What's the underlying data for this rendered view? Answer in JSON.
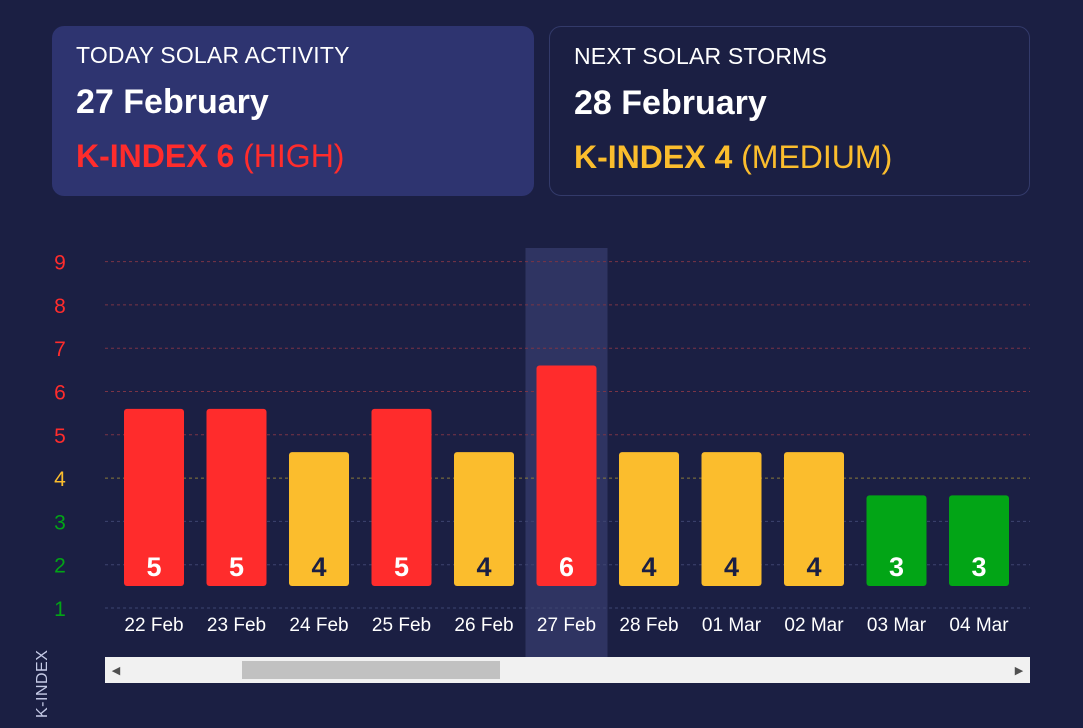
{
  "today": {
    "heading": "TODAY SOLAR ACTIVITY",
    "date": "27 February",
    "kindex_label": "K-INDEX 6",
    "level": "(HIGH)"
  },
  "next": {
    "heading": "NEXT SOLAR STORMS",
    "date": "28 February",
    "kindex_label": "K-INDEX 4",
    "level": "(MEDIUM)"
  },
  "colors": {
    "high": "#ff2c2c",
    "medium": "#fbbd2d",
    "low": "#02a516",
    "background": "#1b1f43"
  },
  "chart_data": {
    "type": "bar",
    "ylabel": "K-INDEX",
    "ylim": [
      1,
      9
    ],
    "yticks": [
      1,
      2,
      3,
      4,
      5,
      6,
      7,
      8,
      9
    ],
    "categories": [
      "22 Feb",
      "23 Feb",
      "24 Feb",
      "25 Feb",
      "26 Feb",
      "27 Feb",
      "28 Feb",
      "01 Mar",
      "02 Mar",
      "03 Mar",
      "04 Mar"
    ],
    "values": [
      5,
      5,
      4,
      5,
      4,
      6,
      4,
      4,
      4,
      3,
      3
    ],
    "highlighted_category": "27 Feb",
    "grid": true
  },
  "scrollbar": {
    "left_arrow": "◀",
    "right_arrow": "▶",
    "position_fraction": 0.15,
    "visible_fraction": 0.28
  }
}
